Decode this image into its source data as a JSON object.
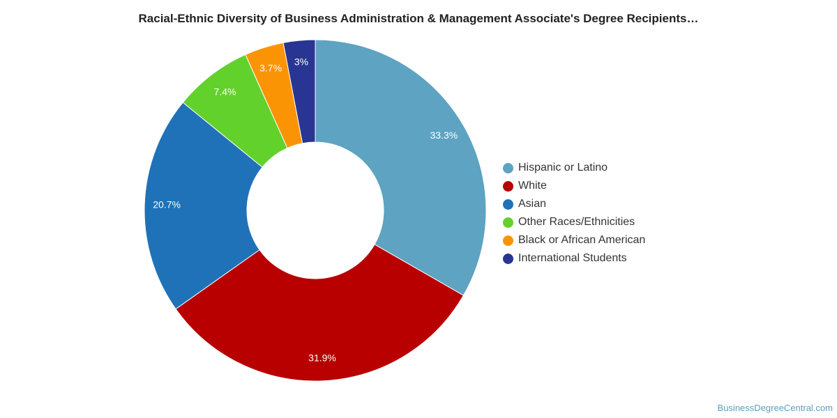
{
  "title": "Racial-Ethnic Diversity of Business Administration & Management Associate's Degree Recipients…",
  "credit": "BusinessDegreeCentral.com",
  "chart_data": {
    "type": "pie",
    "donut": true,
    "title": "Racial-Ethnic Diversity of Business Administration & Management Associate's Degree Recipients…",
    "legend_position": "right",
    "slices": [
      {
        "name": "Hispanic or Latino",
        "value": 33.3,
        "label": "33.3%",
        "color": "#5ea3c1"
      },
      {
        "name": "White",
        "value": 31.9,
        "label": "31.9%",
        "color": "#b80000"
      },
      {
        "name": "Asian",
        "value": 20.7,
        "label": "20.7%",
        "color": "#1f72b8"
      },
      {
        "name": "Other Races/Ethnicities",
        "value": 7.4,
        "label": "7.4%",
        "color": "#63d12b"
      },
      {
        "name": "Black or African American",
        "value": 3.7,
        "label": "3.7%",
        "color": "#fb9404"
      },
      {
        "name": "International Students",
        "value": 3,
        "label": "3%",
        "color": "#283592"
      }
    ]
  }
}
